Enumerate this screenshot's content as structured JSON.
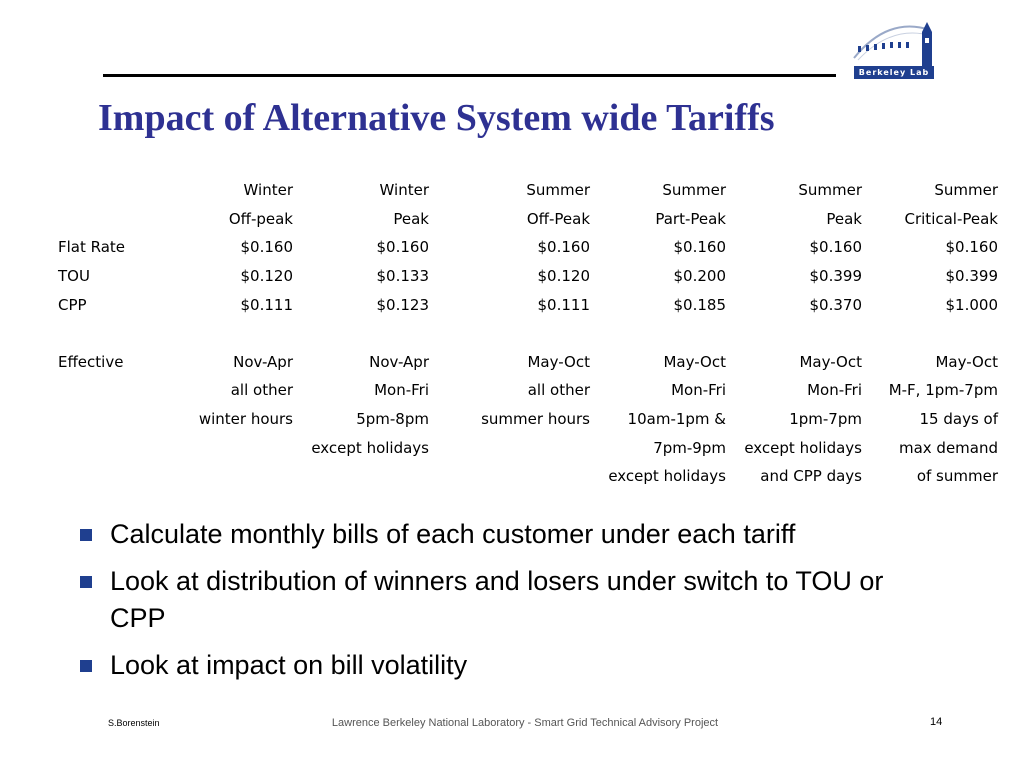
{
  "logo": {
    "text": "Berkeley Lab"
  },
  "title": "Impact of Alternative System wide Tariffs",
  "table": {
    "header1": [
      "Winter",
      "Winter",
      "Summer",
      "Summer",
      "Summer",
      "Summer"
    ],
    "header2": [
      "Off-peak",
      "Peak",
      "Off-Peak",
      "Part-Peak",
      "Peak",
      "Critical-Peak"
    ],
    "rates": [
      {
        "label": "Flat Rate",
        "values": [
          "$0.160",
          "$0.160",
          "$0.160",
          "$0.160",
          "$0.160",
          "$0.160"
        ]
      },
      {
        "label": "TOU",
        "values": [
          "$0.120",
          "$0.133",
          "$0.120",
          "$0.200",
          "$0.399",
          "$0.399"
        ]
      },
      {
        "label": "CPP",
        "values": [
          "$0.111",
          "$0.123",
          "$0.111",
          "$0.185",
          "$0.370",
          "$1.000"
        ]
      }
    ],
    "effective_label": "Effective",
    "effective_rows": [
      [
        "Nov-Apr",
        "Nov-Apr",
        "May-Oct",
        "May-Oct",
        "May-Oct",
        "May-Oct"
      ],
      [
        "all other",
        "Mon-Fri",
        "all other",
        "Mon-Fri",
        "Mon-Fri",
        "M-F, 1pm-7pm"
      ],
      [
        "winter hours",
        "5pm-8pm",
        "summer hours",
        "10am-1pm &",
        "1pm-7pm",
        "15 days of"
      ],
      [
        "",
        "except holidays",
        "",
        "7pm-9pm",
        "except holidays",
        "max demand"
      ],
      [
        "",
        "",
        "",
        "except holidays",
        "and CPP days",
        "of summer"
      ]
    ]
  },
  "bullets": [
    "Calculate monthly bills of each customer under each tariff",
    "Look at distribution of winners and losers under switch to TOU or CPP",
    "Look at impact on bill volatility"
  ],
  "footer": {
    "author": "S.Borenstein",
    "center": "Lawrence Berkeley National Laboratory - Smart Grid Technical Advisory Project",
    "page_number": "14"
  }
}
